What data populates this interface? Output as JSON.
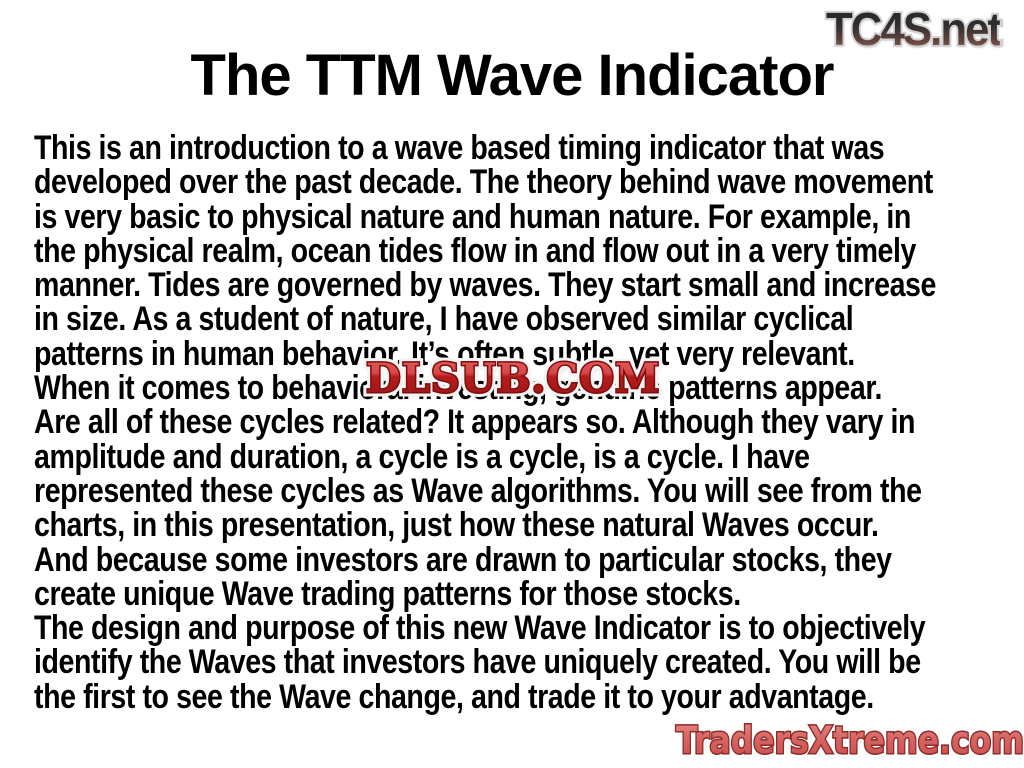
{
  "slide": {
    "title": "The TTM Wave Indicator",
    "body_lines": [
      "This is an introduction to a wave based timing indicator that was",
      "developed over the past decade. The theory behind wave movement",
      "is very basic to physical nature and human nature. For example, in",
      "the physical realm, ocean tides flow in and flow out in a very timely",
      "manner. Tides are governed by waves. They start small and increase",
      "in size. As a student of nature, I have observed similar cyclical",
      "patterns in human behavior. It’s often subtle, yet very relevant.",
      "When it comes to behavioral investing, genuine patterns appear.",
      "Are all of these cycles related? It appears so. Although they vary in",
      "amplitude and duration, a cycle is a cycle, is a cycle. I have",
      "represented these cycles as Wave algorithms. You will see from the",
      "charts, in this presentation, just how these natural Waves occur.",
      "And because some investors are drawn to particular stocks, they",
      "create unique Wave trading patterns for those stocks.",
      "The design and purpose of this new Wave Indicator is to objectively",
      "identify the Waves that investors have uniquely created. You will be",
      "the first to see the Wave change, and trade it to your advantage."
    ]
  },
  "watermarks": {
    "tc4s": "TC4S.net",
    "dlsub": "DLSUB.COM",
    "tradersxtreme": "TradersXtreme.com"
  },
  "colors": {
    "background": "#ffffff",
    "body_text": "#000000",
    "dlsub_red": "#c22323",
    "dlsub_outline": "#f4f4f4",
    "tradersxtreme_fill": "#d66563",
    "tradersxtreme_outline": "#8e2a28",
    "tc4s_gradient_top": "#262626",
    "tc4s_gradient_bottom": "#9c6e63"
  }
}
